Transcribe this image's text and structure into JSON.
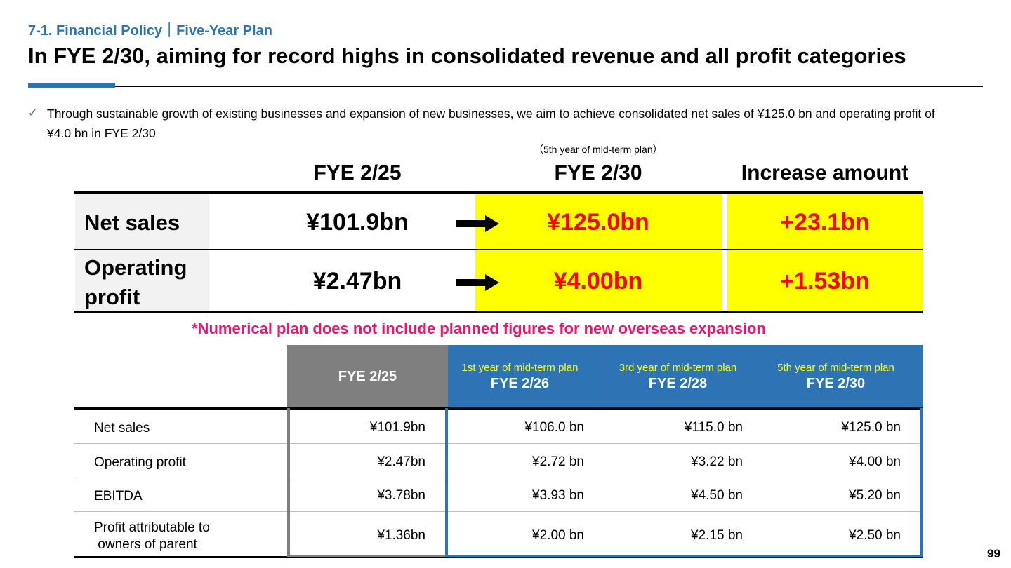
{
  "header": {
    "section": "7-1. Financial Policy｜Five-Year Plan",
    "title": "In FYE 2/30, aiming for record highs in consolidated revenue and all profit categories"
  },
  "lead": {
    "bullet_icon": "checkmark-icon",
    "text": "Through sustainable growth of existing businesses and expansion of new businesses, we aim to achieve consolidated net sales of ¥125.0 bn and operating profit of ¥4.0 bn in FYE 2/30"
  },
  "summary": {
    "midterm_note": "（5th year of mid-term plan）",
    "headers": [
      "FYE 2/25",
      "FYE 2/30",
      "Increase amount"
    ],
    "rows": [
      {
        "label": "Net sales",
        "base": "¥101.9bn",
        "target": "¥125.0bn",
        "increase": "+23.1bn"
      },
      {
        "label": "Operating profit",
        "base": "¥2.47bn",
        "target": "¥4.00bn",
        "increase": "+1.53bn"
      }
    ],
    "arrow_icon": "right-arrow-icon",
    "highlight_color": "#ffff00",
    "value_color": "#ff0000"
  },
  "disclaimer": "*Numerical plan does not include planned figures for new overseas expansion",
  "detail": {
    "base_header": "FYE 2/25",
    "plan_headers": [
      {
        "plan": "1st year of mid-term plan",
        "fy": "FYE 2/26"
      },
      {
        "plan": "3rd year of mid-term plan",
        "fy": "FYE 2/28"
      },
      {
        "plan": "5th year of mid-term plan",
        "fy": "FYE 2/30"
      }
    ],
    "rows": [
      {
        "label": "Net sales",
        "values": [
          "¥101.9bn",
          "¥106.0 bn",
          "¥115.0 bn",
          "¥125.0 bn"
        ]
      },
      {
        "label": "Operating profit",
        "values": [
          "¥2.47bn",
          "¥2.72 bn",
          "¥3.22 bn",
          "¥4.00 bn"
        ]
      },
      {
        "label": "EBITDA",
        "values": [
          "¥3.78bn",
          "¥3.93 bn",
          "¥4.50 bn",
          "¥5.20 bn"
        ]
      },
      {
        "label_lines": [
          "Profit attributable to",
          " owners of parent"
        ],
        "values": [
          "¥1.36bn",
          "¥2.00 bn",
          "¥2.15 bn",
          "¥2.50 bn"
        ]
      }
    ],
    "base_color": "#7f7f7f",
    "plan_color": "#2e74b5"
  },
  "page_number": "99"
}
